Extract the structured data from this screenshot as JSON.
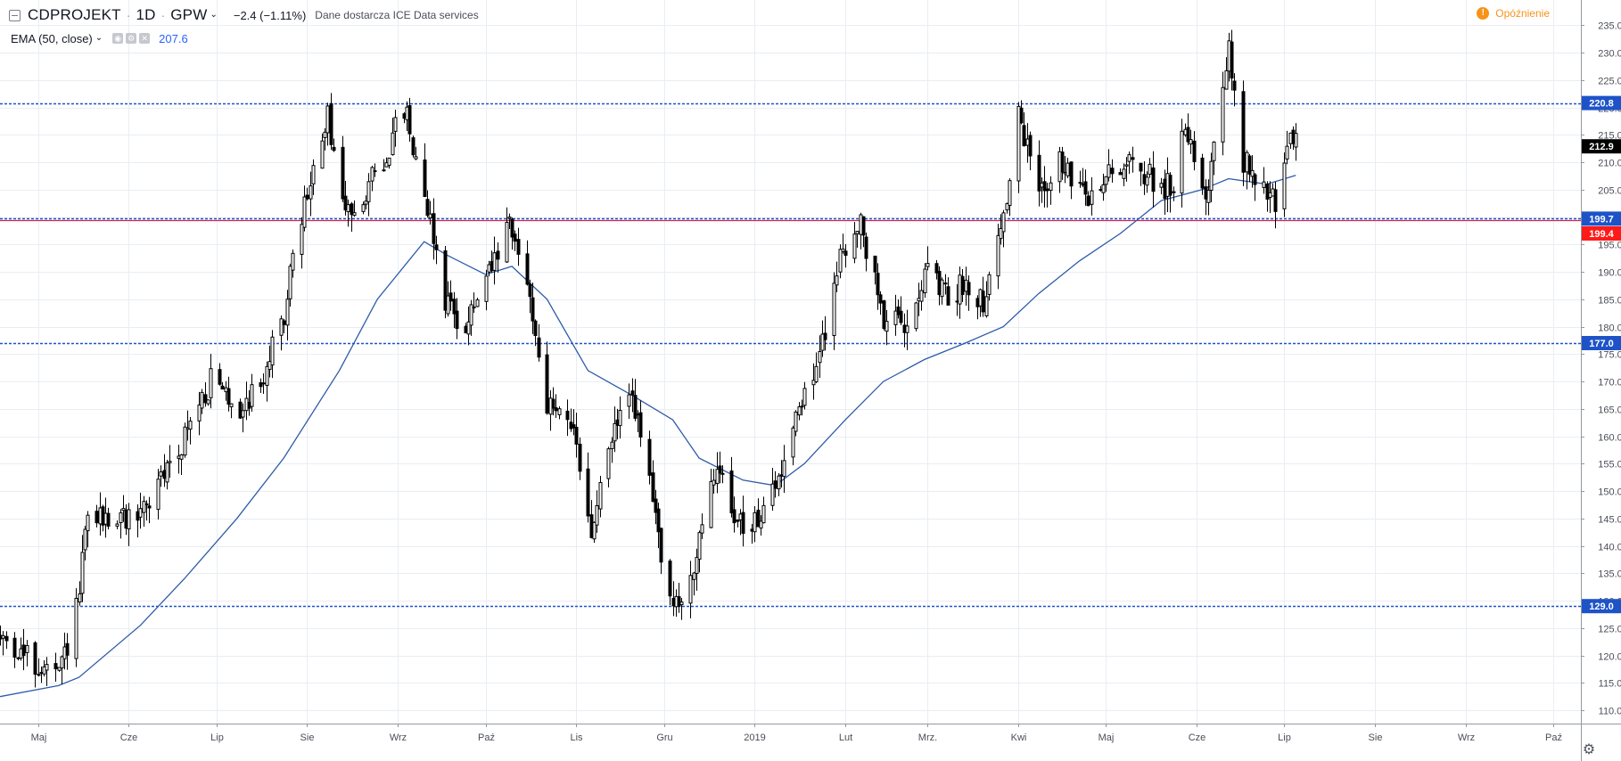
{
  "header": {
    "symbol": "CDPROJEKT",
    "interval": "1D",
    "exchange": "GPW",
    "change": "−2.4 (−1.11%)",
    "provider": "Dane dostarcza ICE Data services"
  },
  "indicator": {
    "name": "EMA (50, close)",
    "value": "207.6"
  },
  "status": {
    "delay_label": "Opóźnienie",
    "delay_icon": "!"
  },
  "colors": {
    "up_candle": "#ffffff",
    "down_candle": "#000000",
    "ema_line": "#2d5ba8",
    "level_line": "#1e53c8",
    "red_line": "#d6224f",
    "last_price_bg": "#000000",
    "red_label_bg": "#ff1a1a",
    "delay": "#f7931a"
  },
  "chart_data": {
    "type": "candlestick",
    "ylim": [
      106,
      237
    ],
    "yticks": [
      "110.0",
      "115.0",
      "120.0",
      "125.0",
      "130.0",
      "135.0",
      "140.0",
      "145.0",
      "150.0",
      "155.0",
      "160.0",
      "165.0",
      "170.0",
      "175.0",
      "180.0",
      "185.0",
      "190.0",
      "195.0",
      "200.0",
      "205.0",
      "210.0",
      "215.0",
      "220.0",
      "225.0",
      "230.0",
      "235.0"
    ],
    "xticks": [
      "Maj",
      "Cze",
      "Lip",
      "Sie",
      "Wrz",
      "Paź",
      "Lis",
      "Gru",
      "2019",
      "Lut",
      "Mrz.",
      "Kwi",
      "Maj",
      "Cze",
      "Lip",
      "Sie",
      "Wrz",
      "Paź"
    ],
    "ohlc_anchors": [
      [
        "2018-04-20",
        123
      ],
      [
        "2018-04-30",
        118
      ],
      [
        "2018-05-08",
        116
      ],
      [
        "2018-05-14",
        128
      ],
      [
        "2018-05-18",
        145
      ],
      [
        "2018-06-01",
        145
      ],
      [
        "2018-06-08",
        148
      ],
      [
        "2018-06-18",
        158
      ],
      [
        "2018-06-29",
        170
      ],
      [
        "2018-07-09",
        165
      ],
      [
        "2018-07-16",
        170
      ],
      [
        "2018-07-23",
        180
      ],
      [
        "2018-07-30",
        200
      ],
      [
        "2018-08-08",
        218
      ],
      [
        "2018-08-14",
        200
      ],
      [
        "2018-08-27",
        210
      ],
      [
        "2018-09-03",
        220
      ],
      [
        "2018-09-10",
        205
      ],
      [
        "2018-09-17",
        185
      ],
      [
        "2018-09-24",
        180
      ],
      [
        "2018-10-01",
        188
      ],
      [
        "2018-10-09",
        198
      ],
      [
        "2018-10-16",
        186
      ],
      [
        "2018-10-22",
        165
      ],
      [
        "2018-10-29",
        165
      ],
      [
        "2018-11-06",
        142
      ],
      [
        "2018-11-13",
        160
      ],
      [
        "2018-11-20",
        168
      ],
      [
        "2018-11-27",
        148
      ],
      [
        "2018-12-04",
        128
      ],
      [
        "2018-12-07",
        130
      ],
      [
        "2018-12-13",
        140
      ],
      [
        "2018-12-19",
        155
      ],
      [
        "2018-12-28",
        142
      ],
      [
        "2019-01-08",
        150
      ],
      [
        "2019-01-15",
        165
      ],
      [
        "2019-01-22",
        172
      ],
      [
        "2019-01-31",
        195
      ],
      [
        "2019-02-06",
        198
      ],
      [
        "2019-02-14",
        182
      ],
      [
        "2019-02-20",
        180
      ],
      [
        "2019-02-28",
        190
      ],
      [
        "2019-03-08",
        185
      ],
      [
        "2019-03-14",
        188
      ],
      [
        "2019-03-20",
        185
      ],
      [
        "2019-03-27",
        200
      ],
      [
        "2019-04-01",
        218
      ],
      [
        "2019-04-08",
        205
      ],
      [
        "2019-04-15",
        210
      ],
      [
        "2019-04-24",
        203
      ],
      [
        "2019-05-06",
        210
      ],
      [
        "2019-05-14",
        208
      ],
      [
        "2019-05-24",
        205
      ],
      [
        "2019-05-28",
        218
      ],
      [
        "2019-06-04",
        204
      ],
      [
        "2019-06-07",
        212
      ],
      [
        "2019-06-12",
        230
      ],
      [
        "2019-06-17",
        210
      ],
      [
        "2019-06-24",
        205
      ],
      [
        "2019-06-28",
        203
      ],
      [
        "2019-07-04",
        215
      ],
      [
        "2019-07-05",
        212.9
      ]
    ],
    "ema50": {
      "name": "EMA (50, close)",
      "points": [
        [
          "2018-04-18",
          112.5
        ],
        [
          "2018-05-08",
          114.5
        ],
        [
          "2018-05-15",
          116
        ],
        [
          "2018-06-05",
          125.5
        ],
        [
          "2018-06-20",
          134
        ],
        [
          "2018-07-08",
          145
        ],
        [
          "2018-07-24",
          156
        ],
        [
          "2018-08-12",
          172
        ],
        [
          "2018-08-25",
          185
        ],
        [
          "2018-09-10",
          195.5
        ],
        [
          "2018-09-18",
          193
        ],
        [
          "2018-10-01",
          189.5
        ],
        [
          "2018-10-10",
          191
        ],
        [
          "2018-10-22",
          185
        ],
        [
          "2018-11-05",
          172
        ],
        [
          "2018-11-20",
          167.5
        ],
        [
          "2018-12-04",
          163
        ],
        [
          "2018-12-13",
          156
        ],
        [
          "2018-12-28",
          152
        ],
        [
          "2019-01-08",
          151
        ],
        [
          "2019-01-18",
          155
        ],
        [
          "2019-02-01",
          163
        ],
        [
          "2019-02-14",
          170
        ],
        [
          "2019-02-28",
          174
        ],
        [
          "2019-03-14",
          177
        ],
        [
          "2019-03-27",
          180
        ],
        [
          "2019-04-08",
          186
        ],
        [
          "2019-04-22",
          192
        ],
        [
          "2019-05-06",
          197
        ],
        [
          "2019-05-20",
          203
        ],
        [
          "2019-06-03",
          205
        ],
        [
          "2019-06-12",
          207
        ],
        [
          "2019-06-25",
          206
        ],
        [
          "2019-07-05",
          207.6
        ]
      ]
    },
    "horizontal_levels": [
      {
        "price": 220.8,
        "label": "220.8",
        "style": "dotted",
        "color": "#1e53c8"
      },
      {
        "price": 199.7,
        "label": "199.7",
        "style": "dotted",
        "color": "#1e53c8"
      },
      {
        "price": 199.4,
        "label": "199.4",
        "style": "solid",
        "color": "#d6224f"
      },
      {
        "price": 177.0,
        "label": "177.0",
        "style": "dotted",
        "color": "#1e53c8"
      },
      {
        "price": 129.0,
        "label": "129.0",
        "style": "dotted",
        "color": "#1e53c8"
      }
    ],
    "last_price": {
      "price": 212.9,
      "label": "212.9"
    },
    "grid": true
  }
}
